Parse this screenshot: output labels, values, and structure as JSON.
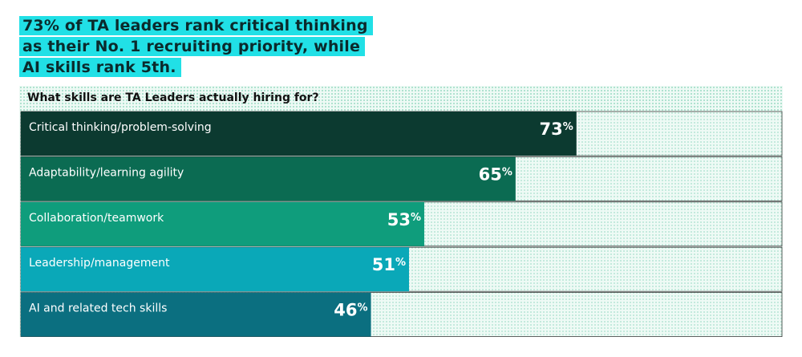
{
  "headline": {
    "lines": [
      "73% of TA leaders rank critical thinking",
      "as their No. 1 recruiting priority, while",
      "AI skills rank 5th."
    ]
  },
  "chart_data": {
    "type": "bar",
    "orientation": "horizontal",
    "title": "What skills are TA Leaders actually hiring for?",
    "categories": [
      "Critical thinking/problem-solving",
      "Adaptability/learning agility",
      "Collaboration/teamwork",
      "Leadership/management",
      "AI and related tech skills"
    ],
    "values": [
      73,
      65,
      53,
      51,
      46
    ],
    "value_suffix": "%",
    "xlim": [
      0,
      100
    ],
    "grid": false,
    "legend": "none",
    "colors": [
      "#0c3a30",
      "#0b6b52",
      "#0f9d7c",
      "#0aa8b8",
      "#0b6f80"
    ],
    "track_color": "#eefaf5"
  }
}
